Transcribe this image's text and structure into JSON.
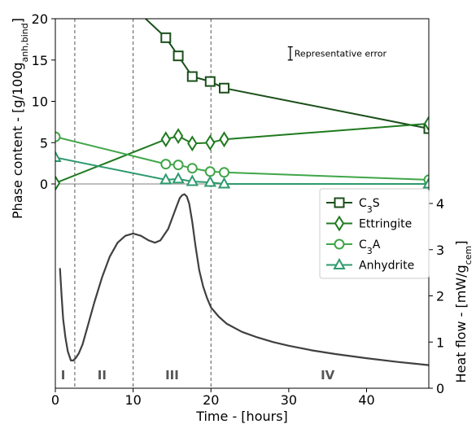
{
  "chart_data": {
    "type": "line",
    "xlabel": "Time - [hours]",
    "x_ticks": [
      "0",
      "10",
      "20",
      "30",
      "40"
    ],
    "xlim": [
      0,
      48
    ],
    "left_axis": {
      "label_parts": [
        {
          "t": "Phase content - [g/100g",
          "sub": false
        },
        {
          "t": "anh,bind",
          "sub": true
        },
        {
          "t": "]",
          "sub": false
        }
      ],
      "ticks": [
        "0",
        "5",
        "10",
        "15",
        "20"
      ],
      "ylim": [
        0,
        20
      ]
    },
    "right_axis": {
      "label_parts": [
        {
          "t": "Heat flow - [mW/g",
          "sub": false
        },
        {
          "t": "cem",
          "sub": true
        },
        {
          "t": "]",
          "sub": false
        }
      ],
      "ticks": [
        "0",
        "1",
        "2",
        "3",
        "4"
      ],
      "ylim": [
        0,
        4
      ]
    },
    "series": [
      {
        "name": "C3S",
        "label_parts": [
          {
            "t": "C",
            "sub": false
          },
          {
            "t": "3",
            "sub": true
          },
          {
            "t": "S",
            "sub": false
          }
        ],
        "marker": "square",
        "color": "#1a4f1a",
        "x": [
          -2,
          14.2,
          15.8,
          17.6,
          19.9,
          21.7,
          48
        ],
        "y": [
          32,
          17.7,
          15.5,
          13.0,
          12.4,
          11.6,
          6.7
        ]
      },
      {
        "name": "Ettringite",
        "label_parts": [
          {
            "t": "Ettringite",
            "sub": false
          }
        ],
        "marker": "diamond",
        "color": "#1f7a1f",
        "x": [
          0,
          14.2,
          15.8,
          17.6,
          19.9,
          21.7,
          48
        ],
        "y": [
          0.1,
          5.4,
          5.8,
          4.9,
          5.0,
          5.4,
          7.3
        ]
      },
      {
        "name": "C3A",
        "label_parts": [
          {
            "t": "C",
            "sub": false
          },
          {
            "t": "3",
            "sub": true
          },
          {
            "t": "A",
            "sub": false
          }
        ],
        "marker": "circle",
        "color": "#3fa648",
        "x": [
          0,
          14.2,
          15.8,
          17.6,
          19.9,
          21.7,
          48
        ],
        "y": [
          5.7,
          2.4,
          2.3,
          1.9,
          1.5,
          1.4,
          0.5
        ]
      },
      {
        "name": "Anhydrite",
        "label_parts": [
          {
            "t": "Anhydrite",
            "sub": false
          }
        ],
        "marker": "triangle",
        "color": "#2e9a6e",
        "x": [
          0,
          14.2,
          15.8,
          17.6,
          19.9,
          21.7,
          48
        ],
        "y": [
          3.2,
          0.5,
          0.6,
          0.3,
          0.2,
          0.0,
          0.0
        ]
      }
    ],
    "heat_flow": {
      "color": "#404040",
      "x": [
        0.6,
        0.8,
        1.0,
        1.3,
        1.6,
        2.0,
        2.3,
        2.6,
        3.0,
        3.5,
        4.0,
        5.0,
        6.0,
        7.0,
        8.0,
        9.0,
        10.0,
        11.0,
        12.0,
        12.8,
        13.5,
        14.5,
        15.5,
        16.0,
        16.3,
        16.6,
        16.9,
        17.2,
        17.6,
        18.0,
        18.5,
        19.0,
        19.5,
        20.0,
        21.0,
        22.0,
        24.0,
        26.0,
        28.0,
        30.0,
        33.0,
        36.0,
        40.0,
        44.0,
        48.0
      ],
      "y": [
        2.6,
        2.0,
        1.5,
        1.1,
        0.8,
        0.6,
        0.6,
        0.65,
        0.75,
        0.95,
        1.25,
        1.85,
        2.4,
        2.85,
        3.15,
        3.3,
        3.35,
        3.3,
        3.2,
        3.15,
        3.2,
        3.45,
        3.9,
        4.12,
        4.18,
        4.2,
        4.15,
        4.0,
        3.6,
        3.1,
        2.55,
        2.2,
        1.95,
        1.75,
        1.55,
        1.4,
        1.22,
        1.1,
        1.0,
        0.92,
        0.82,
        0.74,
        0.65,
        0.57,
        0.5
      ]
    },
    "reference_line_y": 0,
    "vertical_lines": [
      2.5,
      10,
      20
    ],
    "regions": [
      {
        "label": "I",
        "x": 1.0
      },
      {
        "label": "II",
        "x": 6.0
      },
      {
        "label": "III",
        "x": 15.0
      },
      {
        "label": "IV",
        "x": 35.0
      }
    ],
    "annotation": {
      "text": "Representative error",
      "x": 30.2,
      "y": 15.8,
      "error_half": 0.8
    },
    "legend": {
      "position": "right"
    }
  }
}
